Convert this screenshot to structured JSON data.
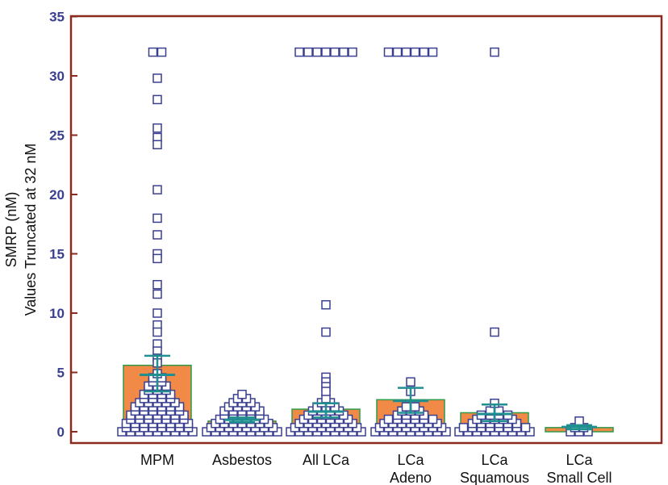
{
  "chart_data": {
    "type": "scatter",
    "style": "dot-plot with bar and error bars per category",
    "title": "",
    "xlabel": "",
    "ylabel_lines": [
      "SMRP (nM)",
      "Values Truncated at 32 nM"
    ],
    "ylim": [
      0,
      35
    ],
    "yticks": [
      0,
      5,
      10,
      15,
      20,
      25,
      30,
      35
    ],
    "grid": false,
    "colors": {
      "frame": "#8b2a1f",
      "bar_fill": "#f28a47",
      "bar_edge": "#2f9a4a",
      "marker_edge": "#3a3f8f",
      "error_bar": "#1f8f8f"
    },
    "categories": [
      {
        "label_lines": [
          "MPM"
        ],
        "bar_value": 5.6,
        "mean_line": 4.8,
        "error_low": 3.4,
        "error_high": 6.4,
        "outliers": [
          32,
          32,
          29.8,
          28,
          25.6,
          24.8,
          24.2,
          20.4,
          18,
          16.6,
          15,
          14.6,
          12.4,
          11.6,
          10,
          9,
          8.4,
          7.4,
          6.8,
          6.2,
          5.8
        ],
        "cluster_top": 5.2
      },
      {
        "label_lines": [
          "Asbestos"
        ],
        "bar_value": 0.9,
        "mean_line": 1.0,
        "error_low": 0.8,
        "error_high": 1.2,
        "outliers": [],
        "cluster_top": 3.2
      },
      {
        "label_lines": [
          "All LCa"
        ],
        "bar_value": 1.9,
        "mean_line": 1.7,
        "error_low": 1.2,
        "error_high": 2.4,
        "outliers": [
          32,
          32,
          32,
          32,
          32,
          32,
          32,
          10.7,
          8.4,
          4.6,
          4.2,
          3.8,
          3.4
        ],
        "cluster_top": 2.8
      },
      {
        "label_lines": [
          "LCa",
          "Adeno"
        ],
        "bar_value": 2.7,
        "mean_line": 2.6,
        "error_low": 1.6,
        "error_high": 3.7,
        "outliers": [
          32,
          32,
          32,
          32,
          32,
          32,
          4.2,
          3.4
        ],
        "cluster_top": 2.4
      },
      {
        "label_lines": [
          "LCa",
          "Squamous"
        ],
        "bar_value": 1.6,
        "mean_line": 1.5,
        "error_low": 0.9,
        "error_high": 2.3,
        "outliers": [
          32,
          8.4,
          2.4
        ],
        "cluster_top": 2.0
      },
      {
        "label_lines": [
          "LCa",
          "Small Cell"
        ],
        "bar_value": 0.35,
        "mean_line": 0.4,
        "error_low": 0.2,
        "error_high": 0.55,
        "outliers": [
          0.9
        ],
        "cluster_top": 0.5
      }
    ]
  }
}
